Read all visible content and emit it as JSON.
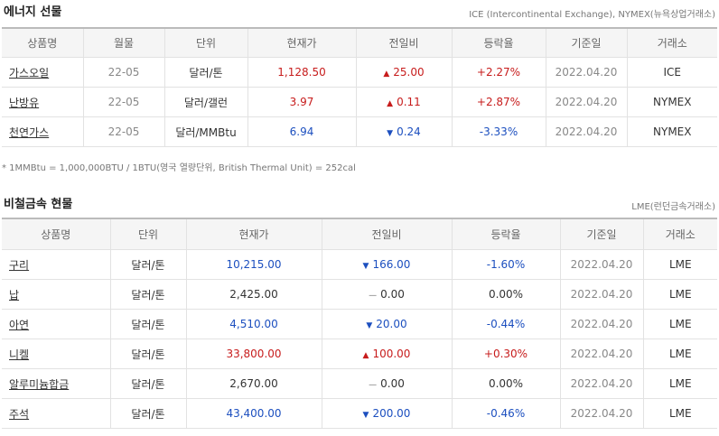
{
  "energy": {
    "title": "에너지 선물",
    "note": "ICE (Intercontinental Exchange), NYMEX(뉴욕상업거래소)",
    "headers": [
      "상품명",
      "월물",
      "단위",
      "현재가",
      "전일비",
      "등락율",
      "기준일",
      "거래소"
    ],
    "rows": [
      {
        "name": "가스오일",
        "month": "22-05",
        "unit": "달러/톤",
        "price": "1,128.50",
        "change": "25.00",
        "dir": "up",
        "rate": "+2.27%",
        "date": "2022.04.20",
        "exchange": "ICE"
      },
      {
        "name": "난방유",
        "month": "22-05",
        "unit": "달러/갤런",
        "price": "3.97",
        "change": "0.11",
        "dir": "up",
        "rate": "+2.87%",
        "date": "2022.04.20",
        "exchange": "NYMEX"
      },
      {
        "name": "천연가스",
        "month": "22-05",
        "unit": "달러/MMBtu",
        "price": "6.94",
        "change": "0.24",
        "dir": "down",
        "rate": "-3.33%",
        "date": "2022.04.20",
        "exchange": "NYMEX"
      }
    ],
    "footnote": "* 1MMBtu = 1,000,000BTU / 1BTU(영국 열량단위, British Thermal Unit) = 252cal"
  },
  "metal": {
    "title": "비철금속 현물",
    "note": "LME(런던금속거래소)",
    "headers": [
      "상품명",
      "단위",
      "현재가",
      "전일비",
      "등락율",
      "기준일",
      "거래소"
    ],
    "rows": [
      {
        "name": "구리",
        "unit": "달러/톤",
        "price": "10,215.00",
        "change": "166.00",
        "dir": "down",
        "rate": "-1.60%",
        "date": "2022.04.20",
        "exchange": "LME"
      },
      {
        "name": "납",
        "unit": "달러/톤",
        "price": "2,425.00",
        "change": "0.00",
        "dir": "flat",
        "rate": "0.00%",
        "date": "2022.04.20",
        "exchange": "LME"
      },
      {
        "name": "아연",
        "unit": "달러/톤",
        "price": "4,510.00",
        "change": "20.00",
        "dir": "down",
        "rate": "-0.44%",
        "date": "2022.04.20",
        "exchange": "LME"
      },
      {
        "name": "니켈",
        "unit": "달러/톤",
        "price": "33,800.00",
        "change": "100.00",
        "dir": "up",
        "rate": "+0.30%",
        "date": "2022.04.20",
        "exchange": "LME"
      },
      {
        "name": "알루미늄합금",
        "unit": "달러/톤",
        "price": "2,670.00",
        "change": "0.00",
        "dir": "flat",
        "rate": "0.00%",
        "date": "2022.04.20",
        "exchange": "LME"
      },
      {
        "name": "주석",
        "unit": "달러/톤",
        "price": "43,400.00",
        "change": "200.00",
        "dir": "down",
        "rate": "-0.46%",
        "date": "2022.04.20",
        "exchange": "LME"
      }
    ]
  },
  "colors": {
    "up": "#c71c1c",
    "down": "#1c4fbf",
    "flat": "#333333"
  },
  "icons": {
    "up": "triangle-up-icon",
    "down": "triangle-down-icon",
    "flat": "dash-icon"
  }
}
